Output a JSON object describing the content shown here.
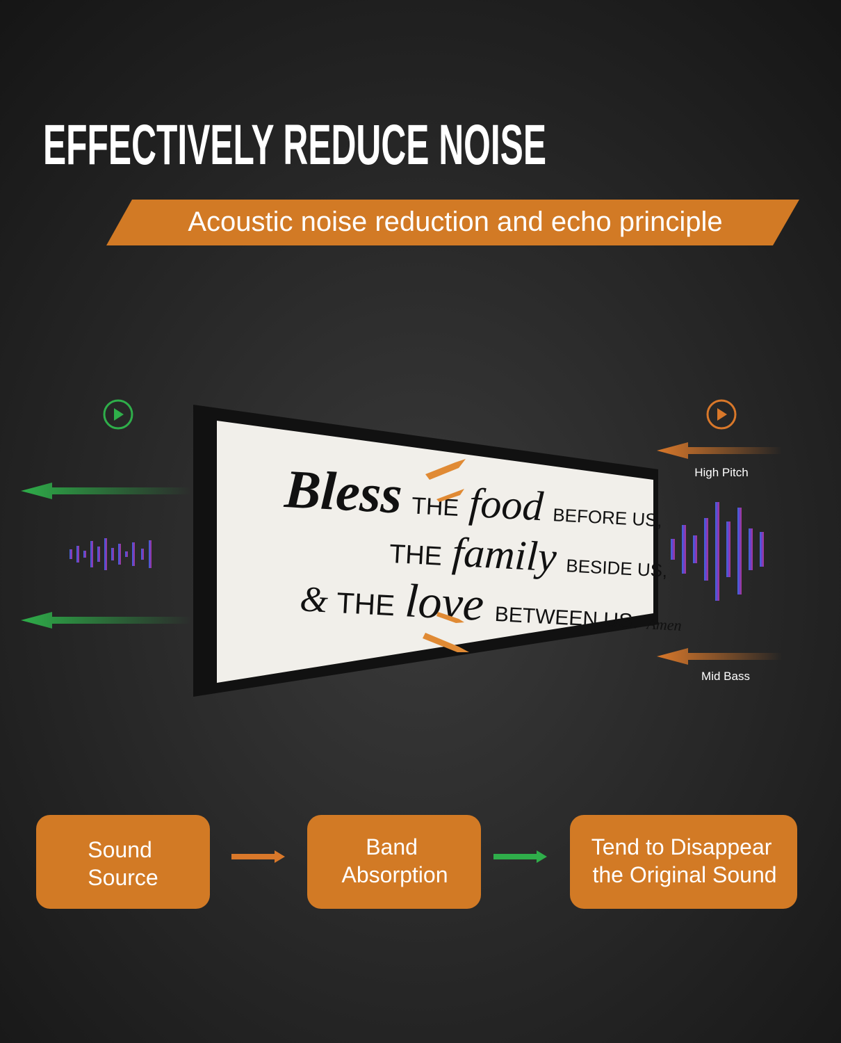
{
  "title": "EFFECTIVELY REDUCE NOISE",
  "banner": "Acoustic noise reduction and echo principle",
  "sign": {
    "lines": [
      [
        "Bless",
        "THE",
        "food",
        "BEFORE US,"
      ],
      [
        "THE",
        "family",
        "BESIDE US,"
      ],
      [
        "&",
        "THE",
        "love",
        "BETWEEN US.",
        "Amen"
      ]
    ]
  },
  "labels": {
    "high": "High Pitch",
    "mid": "Mid Bass"
  },
  "steps": [
    {
      "lines": [
        "Sound",
        "Source"
      ]
    },
    {
      "lines": [
        "Band",
        "Absorption"
      ]
    },
    {
      "lines": [
        "Tend to Disappear",
        "the Original Sound"
      ]
    }
  ]
}
